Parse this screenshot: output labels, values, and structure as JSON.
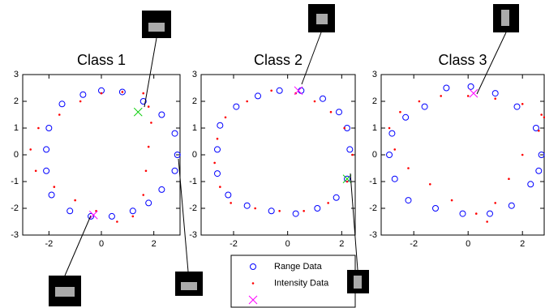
{
  "chart_data": [
    {
      "type": "scatter",
      "title": "Class 1",
      "xlim": [
        -3,
        3
      ],
      "ylim": [
        -3,
        3
      ],
      "xticks": [
        -2,
        0,
        2
      ],
      "yticks": [
        -3,
        -2,
        -1,
        0,
        1,
        2,
        3
      ],
      "series": [
        {
          "color": "#0000ff",
          "marker": "circle",
          "x": [
            2.9,
            2.8,
            2.3,
            1.6,
            0.8,
            0.0,
            -0.7,
            -1.5,
            -2.0,
            -2.1,
            -2.1,
            -1.9,
            -1.2,
            -0.4,
            0.4,
            1.2,
            1.8,
            2.3,
            2.8
          ],
          "y": [
            0.0,
            0.8,
            1.5,
            2.0,
            2.35,
            2.4,
            2.25,
            1.9,
            1.0,
            0.2,
            -0.6,
            -1.5,
            -2.1,
            -2.3,
            -2.3,
            -2.1,
            -1.8,
            -1.3,
            -0.6
          ]
        },
        {
          "color": "#ff0000",
          "marker": "dot",
          "x": [
            1.6,
            0.8,
            0.0,
            -0.8,
            -1.6,
            -2.4,
            -2.7,
            -2.5,
            -1.8,
            -1.0,
            -0.2,
            0.6,
            1.2,
            1.6,
            1.7,
            1.8,
            1.9,
            1.8
          ],
          "y": [
            2.3,
            2.35,
            2.3,
            2.0,
            1.5,
            1.0,
            0.2,
            -0.6,
            -1.2,
            -1.7,
            -2.1,
            -2.5,
            -2.3,
            -1.5,
            -0.6,
            0.3,
            1.2,
            1.8
          ]
        },
        {
          "color": "#ff00ff",
          "marker": "x",
          "x": [
            -0.3
          ],
          "y": [
            -2.25
          ]
        },
        {
          "color": "#00cc00",
          "marker": "x",
          "x": [
            1.4
          ],
          "y": [
            1.6
          ]
        }
      ]
    },
    {
      "type": "scatter",
      "title": "Class 2",
      "xlim": [
        -3.2,
        2.5
      ],
      "ylim": [
        -3,
        3
      ],
      "xticks": [
        -2,
        0,
        2
      ],
      "yticks": [
        -3,
        -2,
        -1,
        0,
        1,
        2,
        3
      ],
      "legend": "bottom",
      "series": [
        {
          "name": "Range Data",
          "color": "#0000ff",
          "marker": "circle",
          "x": [
            2.3,
            2.2,
            1.9,
            1.3,
            0.5,
            -0.3,
            -1.1,
            -1.9,
            -2.5,
            -2.6,
            -2.6,
            -2.2,
            -1.5,
            -0.6,
            0.3,
            1.1,
            1.8,
            2.2
          ],
          "y": [
            0.2,
            1.0,
            1.6,
            2.1,
            2.4,
            2.4,
            2.2,
            1.8,
            1.1,
            0.2,
            -0.7,
            -1.5,
            -1.9,
            -2.1,
            -2.2,
            -2.0,
            -1.6,
            -0.9
          ]
        },
        {
          "name": "Intensity Data",
          "color": "#ff0000",
          "marker": "dot",
          "x": [
            0.3,
            -0.6,
            -1.5,
            -2.3,
            -2.6,
            -2.7,
            -2.5,
            -2.1,
            -1.2,
            -0.3,
            0.6,
            1.5,
            2.2,
            2.4,
            2.1,
            1.6,
            1.0
          ],
          "y": [
            2.3,
            2.4,
            2.0,
            1.4,
            0.6,
            -0.3,
            -1.2,
            -1.8,
            -2.0,
            -2.1,
            -2.1,
            -1.8,
            -1.0,
            0.0,
            1.0,
            1.6,
            2.0
          ]
        },
        {
          "color": "#ff00ff",
          "marker": "x",
          "x": [
            0.4
          ],
          "y": [
            2.4
          ]
        },
        {
          "color": "#00cc00",
          "marker": "x",
          "x": [
            2.2
          ],
          "y": [
            -0.9
          ]
        }
      ]
    },
    {
      "type": "scatter",
      "title": "Class 3",
      "xlim": [
        -3.2,
        2.8
      ],
      "ylim": [
        -3,
        3
      ],
      "xticks": [
        -2,
        0,
        2
      ],
      "yticks": [
        -3,
        -2,
        -1,
        0,
        1,
        2,
        3
      ],
      "series": [
        {
          "color": "#0000ff",
          "marker": "circle",
          "x": [
            2.7,
            2.5,
            1.8,
            1.0,
            0.1,
            -0.8,
            -1.6,
            -2.3,
            -2.8,
            -2.9,
            -2.7,
            -2.2,
            -1.2,
            -0.2,
            0.8,
            1.6,
            2.3,
            2.6
          ],
          "y": [
            0.0,
            1.0,
            1.8,
            2.3,
            2.55,
            2.5,
            1.8,
            1.4,
            0.8,
            0.0,
            -0.9,
            -1.7,
            -2.0,
            -2.2,
            -2.2,
            -1.9,
            -1.1,
            -0.6
          ]
        },
        {
          "color": "#ff0000",
          "marker": "dot",
          "x": [
            2.7,
            2.0,
            1.0,
            0.0,
            -1.0,
            -1.8,
            -2.5,
            -2.9,
            -2.7,
            -2.2,
            -1.4,
            -0.6,
            0.3,
            0.7,
            1.0,
            1.5,
            2.0,
            2.6,
            2.8
          ],
          "y": [
            1.5,
            1.9,
            2.1,
            2.2,
            2.2,
            2.0,
            1.6,
            1.0,
            0.2,
            -0.5,
            -1.1,
            -1.7,
            -2.2,
            -2.5,
            -1.8,
            -0.9,
            0.0,
            0.9,
            1.4
          ]
        },
        {
          "color": "#ff00ff",
          "marker": "x",
          "x": [
            0.2
          ],
          "y": [
            2.3
          ]
        }
      ]
    }
  ]
}
